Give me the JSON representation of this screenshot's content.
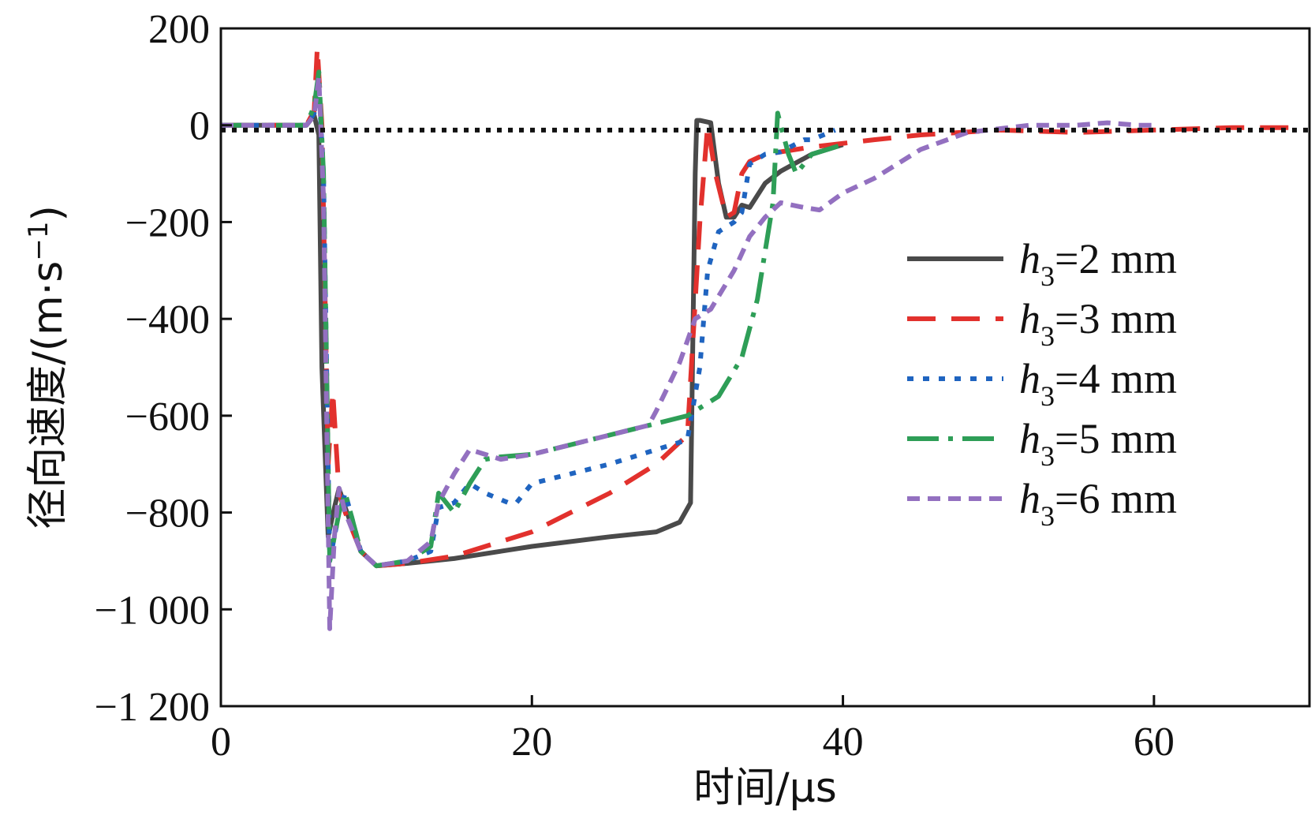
{
  "chart_data": {
    "type": "line",
    "title": "",
    "xlabel": "时间/μs",
    "ylabel_parts": [
      "径向速度/(m·s",
      "−1",
      ")"
    ],
    "xlim": [
      0,
      70
    ],
    "ylim": [
      -1200,
      200
    ],
    "x_ticks": [
      0,
      20,
      40,
      60
    ],
    "x_tick_labels": [
      "0",
      "20",
      "40",
      "60"
    ],
    "y_ticks": [
      200,
      0,
      -200,
      -400,
      -600,
      -800,
      -1000,
      -1200
    ],
    "y_tick_labels": [
      "200",
      "0",
      "−200",
      "−400",
      "−600",
      "−800",
      "−1 000",
      "−1 200"
    ],
    "legend_position": "right",
    "reference_line": {
      "y": -10,
      "style": "dotted",
      "color": "#111111"
    },
    "series": [
      {
        "name": "h3=2 mm",
        "label_var": "h",
        "label_sub": "3",
        "label_rest": "=2 mm",
        "color": "#4a4a4a",
        "dash": "solid",
        "x": [
          0,
          5.5,
          6.0,
          6.3,
          6.5,
          6.9,
          7.3,
          7.6,
          8.0,
          9.0,
          10.0,
          12.0,
          15.0,
          20.0,
          25.0,
          28.0,
          29.5,
          30.2,
          30.5,
          30.6,
          30.8,
          31.5,
          32.0,
          32.5,
          33.0,
          33.5,
          34.0,
          35.0,
          36.0,
          38.0,
          40.0
        ],
        "y": [
          0,
          0,
          20,
          -20,
          -500,
          -850,
          -790,
          -750,
          -790,
          -880,
          -910,
          -905,
          -895,
          -870,
          -850,
          -840,
          -820,
          -780,
          -100,
          10,
          10,
          5,
          -120,
          -190,
          -190,
          -165,
          -170,
          -120,
          -95,
          -60,
          -40
        ]
      },
      {
        "name": "h3=3 mm",
        "label_var": "h",
        "label_sub": "3",
        "label_rest": "=3 mm",
        "color": "#e2312d",
        "dash": "36 20",
        "x": [
          0,
          5.5,
          6.0,
          6.2,
          6.5,
          6.9,
          7.2,
          7.6,
          8.0,
          9.0,
          10.0,
          12.0,
          15.0,
          20.0,
          25.0,
          28.0,
          30.0,
          30.8,
          31.3,
          31.8,
          32.5,
          33.0,
          33.5,
          34.0,
          35.0,
          38.0,
          42.0,
          45.0,
          50.0,
          55.0,
          60.0,
          65.0,
          69.0
        ],
        "y": [
          0,
          0,
          30,
          160,
          0,
          -700,
          -550,
          -760,
          -800,
          -880,
          -910,
          -905,
          -890,
          -840,
          -760,
          -700,
          -640,
          -200,
          0,
          -100,
          -190,
          -180,
          -100,
          -75,
          -60,
          -45,
          -30,
          -20,
          -10,
          -15,
          -10,
          -5,
          -5
        ]
      },
      {
        "name": "h3=4 mm",
        "label_var": "h",
        "label_sub": "3",
        "label_rest": "=4 mm",
        "color": "#1f64c0",
        "dash": "8 12",
        "x": [
          0,
          5.5,
          6.0,
          6.3,
          6.6,
          7.0,
          7.6,
          8.0,
          9.0,
          10.0,
          12.0,
          13.5,
          14.0,
          15.0,
          16.0,
          17.0,
          18.5,
          19.0,
          20.0,
          25.0,
          28.0,
          30.0,
          30.8,
          31.3,
          32.0,
          33.0,
          33.5,
          34.0,
          35.0,
          36.0,
          37.5,
          38.0,
          39.5
        ],
        "y": [
          0,
          0,
          25,
          80,
          -100,
          -900,
          -800,
          -760,
          -880,
          -910,
          -900,
          -880,
          -790,
          -780,
          -740,
          -760,
          -780,
          -780,
          -740,
          -700,
          -670,
          -650,
          -500,
          -300,
          -220,
          -200,
          -180,
          -80,
          -60,
          -55,
          -30,
          -30,
          -10
        ]
      },
      {
        "name": "h3=5 mm",
        "label_var": "h",
        "label_sub": "3",
        "label_rest": "=5 mm",
        "color": "#2e9e57",
        "dash": "40 12 6 12",
        "x": [
          0,
          5.5,
          6.0,
          6.3,
          6.6,
          7.0,
          7.6,
          8.0,
          9.0,
          10.0,
          12.0,
          13.5,
          14.0,
          15.0,
          16.0,
          17.0,
          18.0,
          20.0,
          25.0,
          30.0,
          32.0,
          33.5,
          34.5,
          35.5,
          35.8,
          36.0,
          36.5,
          37.0,
          37.5,
          38.0,
          40.0
        ],
        "y": [
          0,
          0,
          40,
          110,
          -100,
          -900,
          -800,
          -760,
          -880,
          -910,
          -900,
          -870,
          -760,
          -800,
          -740,
          -690,
          -685,
          -680,
          -640,
          -600,
          -560,
          -480,
          -360,
          -160,
          25,
          0,
          -60,
          -100,
          -80,
          -60,
          -40
        ]
      },
      {
        "name": "h3=6 mm",
        "label_var": "h",
        "label_sub": "3",
        "label_rest": "=6 mm",
        "color": "#9370c0",
        "dash": "16 10",
        "x": [
          0,
          5.5,
          6.0,
          6.3,
          6.6,
          7.0,
          7.3,
          7.6,
          8.0,
          9.0,
          10.0,
          12.0,
          13.5,
          14.0,
          15.0,
          16.0,
          18.0,
          20.0,
          25.0,
          27.5,
          28.0,
          29.5,
          30.5,
          31.5,
          33.0,
          34.0,
          35.0,
          36.0,
          37.5,
          38.5,
          40.0,
          42.0,
          45.0,
          48.0,
          52.0,
          55.0,
          57.0,
          59.0,
          60.0
        ],
        "y": [
          0,
          0,
          20,
          100,
          -150,
          -1040,
          -850,
          -750,
          -800,
          -880,
          -910,
          -900,
          -860,
          -780,
          -720,
          -670,
          -690,
          -680,
          -640,
          -620,
          -590,
          -490,
          -400,
          -380,
          -300,
          -230,
          -190,
          -160,
          -170,
          -175,
          -140,
          -110,
          -50,
          -15,
          0,
          0,
          5,
          0,
          0
        ]
      }
    ]
  }
}
